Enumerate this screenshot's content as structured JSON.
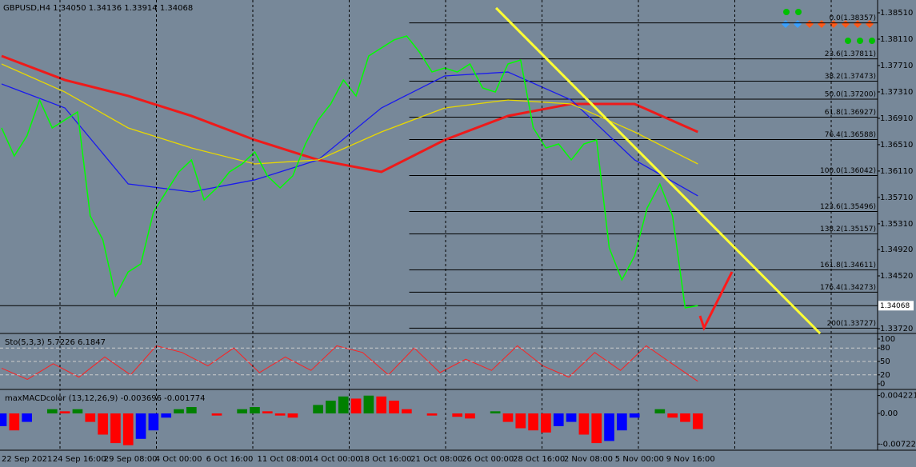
{
  "chart_data": [
    {
      "type": "line",
      "title": "GBPUSD,H4  1.34050 1.34136 1.33914 1.34068",
      "xlim": [
        0,
        69.2
      ],
      "ylim": [
        1.33647,
        1.38704
      ],
      "yticks": [
        {
          "value": 1.3851,
          "label": "1.38510"
        },
        {
          "value": 1.3811,
          "label": "1.38110"
        },
        {
          "value": 1.3771,
          "label": "1.37710"
        },
        {
          "value": 1.3731,
          "label": "1.37310"
        },
        {
          "value": 1.3691,
          "label": "1.36910"
        },
        {
          "value": 1.3651,
          "label": "1.36510"
        },
        {
          "value": 1.3611,
          "label": "1.36110"
        },
        {
          "value": 1.3571,
          "label": "1.35710"
        },
        {
          "value": 1.3531,
          "label": "1.35310"
        },
        {
          "value": 1.3492,
          "label": "1.34920"
        },
        {
          "value": 1.3452,
          "label": "1.34520"
        },
        {
          "value": 1.3372,
          "label": "1.33720"
        }
      ],
      "current": 1.34068,
      "x_labels": [
        "22 Sep 2021",
        "24 Sep 16:00",
        "29 Sep 08:00",
        "4 Oct 00:00",
        "6 Oct 16:00",
        "11 Oct 08:00",
        "14 Oct 00:00",
        "18 Oct 16:00",
        "21 Oct 08:00",
        "26 Oct 00:00",
        "28 Oct 16:00",
        "2 Nov 08:00",
        "5 Nov 00:00",
        "9 Nov 16:00"
      ],
      "series": [
        {
          "color": "#00ff00",
          "values": [
            1.36764,
            1.36339,
            1.36642,
            1.37188,
            1.36764,
            1.36885,
            1.37006,
            1.3543,
            1.35066,
            1.34216,
            1.3458,
            1.34702,
            1.3549,
            1.35794,
            1.36097,
            1.36279,
            1.35672,
            1.35854,
            1.36097,
            1.36218,
            1.364,
            1.36036,
            1.35854,
            1.36036,
            1.36521,
            1.36885,
            1.37128,
            1.37491,
            1.37249,
            1.37855,
            1.37976,
            1.38098,
            1.38158,
            1.37916,
            1.37612,
            1.37673,
            1.37612,
            1.37734,
            1.3737,
            1.37309,
            1.37734,
            1.37794,
            1.36764,
            1.3646,
            1.36521,
            1.36279,
            1.36521,
            1.36582,
            1.34945,
            1.3446,
            1.34823,
            1.35551,
            1.35915,
            1.3543,
            1.34035,
            1.34068
          ]
        },
        {
          "color": "#e8d800",
          "x": [
            0,
            5,
            10,
            15,
            20,
            25,
            30,
            35,
            40,
            45,
            50,
            55
          ],
          "values": [
            1.37734,
            1.37309,
            1.36764,
            1.3646,
            1.36218,
            1.36279,
            1.36703,
            1.37067,
            1.37188,
            1.37128,
            1.36703,
            1.36218
          ]
        },
        {
          "color": "#1a1aee",
          "x": [
            0,
            5,
            10,
            15,
            20,
            25,
            30,
            35,
            40,
            45,
            50,
            55
          ],
          "values": [
            1.37431,
            1.37067,
            1.35915,
            1.35794,
            1.35976,
            1.36279,
            1.37067,
            1.37552,
            1.37612,
            1.37188,
            1.36279,
            1.35733
          ]
        },
        {
          "color": "#ee1a1a",
          "x": [
            0,
            5,
            10,
            15,
            20,
            25,
            30,
            35,
            40,
            45,
            50,
            55
          ],
          "values": [
            1.37855,
            1.37491,
            1.37249,
            1.36946,
            1.36582,
            1.36279,
            1.36097,
            1.36582,
            1.36946,
            1.37128,
            1.37128,
            1.36703
          ]
        }
      ],
      "trendline": {
        "color": "#ffff33",
        "x": [
          39.06,
          64.66
        ],
        "values": [
          1.38583,
          1.33647
        ]
      },
      "fib_start": 32.2,
      "fib_levels": [
        {
          "label": "0.0(1.38357)",
          "value": 1.38357
        },
        {
          "label": "23.6(1.37811)",
          "value": 1.37811
        },
        {
          "label": "38.2(1.37473)",
          "value": 1.37473
        },
        {
          "label": "50.0(1.37200)",
          "value": 1.372
        },
        {
          "label": "61.8(1.36927)",
          "value": 1.36927
        },
        {
          "label": "76.4(1.36588)",
          "value": 1.36588
        },
        {
          "label": "100.0(1.36042)",
          "value": 1.36042
        },
        {
          "label": "123.6(1.35496)",
          "value": 1.35496
        },
        {
          "label": "138.2(1.35157)",
          "value": 1.35157
        },
        {
          "label": "161.8(1.34611)",
          "value": 1.34611
        },
        {
          "label": "176.4(1.34273)",
          "value": 1.34273
        },
        {
          "label": "200(1.33727)",
          "value": 1.33727
        }
      ]
    },
    {
      "type": "line",
      "title": "Sto(5,3,3) 5.7226 6.1847",
      "xlim": [
        0,
        69.2
      ],
      "ylim": [
        -12.5,
        110.7
      ],
      "yticks": [
        100,
        80,
        50,
        20,
        0
      ],
      "series": [
        {
          "color": "#ff2020",
          "values": [
            35,
            10,
            45,
            15,
            60,
            20,
            85,
            70,
            40,
            80,
            25,
            60,
            30,
            85,
            70,
            20,
            80,
            25,
            55,
            30,
            85,
            40,
            15,
            70,
            30,
            85,
            45,
            5.7226
          ]
        }
      ]
    },
    {
      "type": "bar",
      "title": "maxMACDcolor (13,12,26,9) -0.003696 -0.001774",
      "xlim": [
        0,
        69.2
      ],
      "ylim": [
        -0.00868,
        0.00547
      ],
      "yticks": [
        0.004221,
        {
          "value": 0,
          "label": "0.00"
        },
        -0.007228
      ],
      "colors": {
        "rise": "#008000",
        "rise_below": "#0000ff",
        "fall": "#ff0000"
      },
      "values": [
        -0.003,
        -0.004,
        -0.002,
        0,
        0.001,
        0.0005,
        0.001,
        -0.002,
        -0.005,
        -0.007,
        -0.0075,
        -0.006,
        -0.004,
        -0.001,
        0.001,
        0.0015,
        0,
        -0.0005,
        0,
        0.001,
        0.0015,
        0.0005,
        -0.0005,
        -0.001,
        0,
        0.002,
        0.003,
        0.004,
        0.0035,
        0.0042,
        0.004,
        0.003,
        0.001,
        0,
        -0.0005,
        0,
        -0.0008,
        -0.0012,
        0,
        0.0005,
        -0.002,
        -0.0035,
        -0.004,
        -0.0045,
        -0.003,
        -0.002,
        -0.005,
        -0.007,
        -0.0065,
        -0.004,
        -0.001,
        0,
        0.001,
        -0.001,
        -0.002,
        -0.003696
      ]
    }
  ]
}
